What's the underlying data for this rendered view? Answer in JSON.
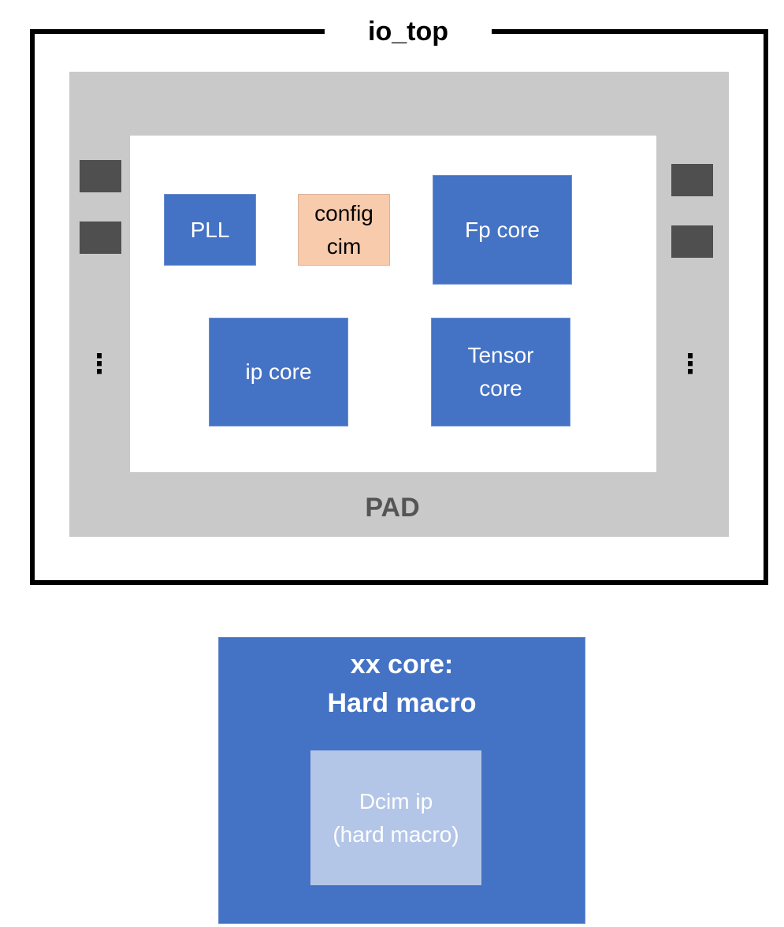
{
  "io_top": {
    "title": "io_top"
  },
  "pad": {
    "label": "PAD",
    "ellipsis": "⋮"
  },
  "blocks": {
    "pll": "PLL",
    "config_cim": "config\ncim",
    "fp_core": "Fp core",
    "ip_core": "ip core",
    "tensor_core": "Tensor\ncore"
  },
  "macro": {
    "title": "xx core:\nHard macro",
    "inner": "Dcim ip\n(hard macro)"
  },
  "colors": {
    "block_blue": "#4472c4",
    "config_orange": "#f8cbad",
    "pad_gray": "#c9c9c9",
    "pad_cell": "#4f4f4f",
    "dcim_light": "#b4c6e7"
  }
}
